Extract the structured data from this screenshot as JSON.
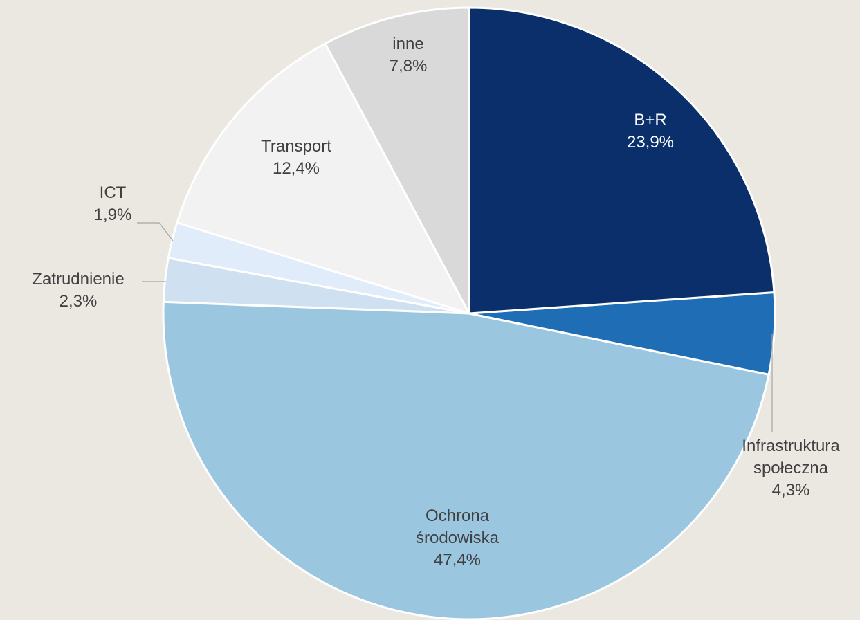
{
  "chart_data": {
    "type": "pie",
    "categories": [
      "B+R",
      "Infrastruktura społeczna",
      "Ochrona środowiska",
      "Zatrudnienie",
      "ICT",
      "Transport",
      "inne"
    ],
    "values": [
      23.9,
      4.3,
      47.4,
      2.3,
      1.9,
      12.4,
      7.8
    ],
    "value_labels": [
      "23,9%",
      "4,3%",
      "47,4%",
      "2,3%",
      "1,9%",
      "12,4%",
      "7,8%"
    ],
    "colors": [
      "#0a2f6b",
      "#1f6db4",
      "#9bc6e0",
      "#cfe0f0",
      "#e0ecfa",
      "#f2f2f2",
      "#d9d9d9"
    ]
  }
}
